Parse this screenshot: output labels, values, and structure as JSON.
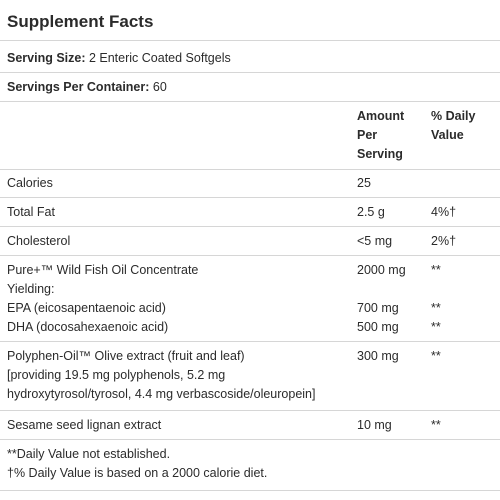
{
  "title": "Supplement Facts",
  "serving_size": {
    "label": "Serving Size:",
    "value": " 2 Enteric Coated Softgels"
  },
  "servings_per_container": {
    "label": "Servings Per Container:",
    "value": " 60"
  },
  "headers": {
    "amount_line1": "Amount",
    "amount_line2": "Per",
    "amount_line3": "Serving",
    "dv_line1": "% Daily",
    "dv_line2": "Value"
  },
  "rows": [
    {
      "name": "Calories",
      "amount": "25",
      "dv": ""
    },
    {
      "name": "Total Fat",
      "amount": "2.5 g",
      "dv": "4%†"
    },
    {
      "name": "Cholesterol",
      "amount": "<5 mg",
      "dv": "2%†"
    },
    {
      "name": "Pure+™ Wild Fish Oil Concentrate",
      "amount": "2000 mg",
      "dv": "**",
      "yielding": "Yielding:",
      "sub": [
        {
          "name": "EPA (eicosapentaenoic acid)",
          "amount": "700 mg",
          "dv": "**"
        },
        {
          "name": "DHA (docosahexaenoic acid)",
          "amount": "500 mg",
          "dv": "**"
        }
      ]
    },
    {
      "name": "Polyphen-Oil™ Olive extract (fruit and leaf)",
      "amount": "300 mg",
      "dv": "**",
      "detail_line1": "[providing 19.5 mg polyphenols, 5.2 mg",
      "detail_line2": "hydroxytyrosol/tyrosol, 4.4 mg verbascoside/oleuropein]"
    },
    {
      "name": "Sesame seed lignan extract",
      "amount": "10 mg",
      "dv": "**"
    }
  ],
  "footnotes": [
    "**Daily Value not established.",
    "†% Daily Value is based on a 2000 calorie diet."
  ]
}
